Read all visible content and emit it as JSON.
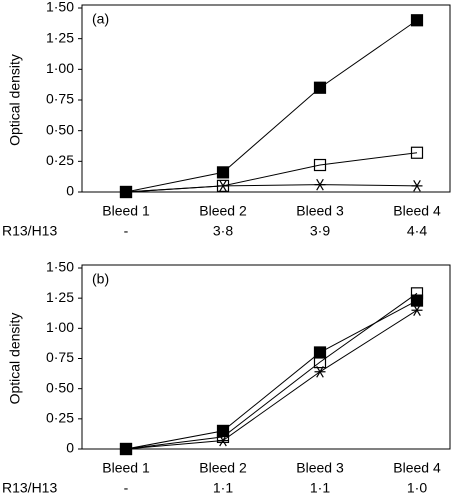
{
  "chart_data": [
    {
      "type": "line",
      "panel_label": "(a)",
      "ylabel": "Optical density",
      "categories": [
        "Bleed 1",
        "Bleed 2",
        "Bleed 3",
        "Bleed 4"
      ],
      "row_label": "R13/H13",
      "row_values": [
        "-",
        "3·8",
        "3·9",
        "4·4"
      ],
      "ylim": [
        0,
        1.5
      ],
      "yticks": [
        0,
        {
          "value": 0.25,
          "label": "0·25"
        },
        {
          "value": 0.5,
          "label": "0·50"
        },
        {
          "value": 0.75,
          "label": "0·75"
        },
        {
          "value": 1,
          "label": "1·00"
        },
        {
          "value": 1.25,
          "label": "1·25"
        },
        {
          "value": 1.5,
          "label": "1·50"
        }
      ],
      "series": [
        {
          "marker": "filled-square",
          "color": "#000000",
          "values": [
            0,
            0.16,
            0.85,
            1.4
          ]
        },
        {
          "marker": "open-square",
          "color": "#000000",
          "values": [
            0,
            0.05,
            0.22,
            0.32
          ]
        },
        {
          "marker": "asterisk",
          "color": "#000000",
          "values": [
            0,
            0.05,
            0.06,
            0.05
          ]
        }
      ]
    },
    {
      "type": "line",
      "panel_label": "(b)",
      "ylabel": "Optical density",
      "categories": [
        "Bleed 1",
        "Bleed 2",
        "Bleed 3",
        "Bleed 4"
      ],
      "row_label": "R13/H13",
      "row_values": [
        "-",
        "1·1",
        "1·1",
        "1·0"
      ],
      "ylim": [
        0,
        1.5
      ],
      "yticks": [
        0,
        {
          "value": 0.25,
          "label": "0·25"
        },
        {
          "value": 0.5,
          "label": "0·50"
        },
        {
          "value": 0.75,
          "label": "0·75"
        },
        {
          "value": 1,
          "label": "1·00"
        },
        {
          "value": 1.25,
          "label": "1·25"
        },
        {
          "value": 1.5,
          "label": "1·50"
        }
      ],
      "series": [
        {
          "marker": "filled-square",
          "color": "#000000",
          "values": [
            0,
            0.15,
            0.8,
            1.23
          ]
        },
        {
          "marker": "open-square",
          "color": "#000000",
          "values": [
            0,
            0.1,
            0.72,
            1.29
          ]
        },
        {
          "marker": "asterisk",
          "color": "#000000",
          "values": [
            0,
            0.07,
            0.64,
            1.15
          ]
        }
      ]
    }
  ]
}
